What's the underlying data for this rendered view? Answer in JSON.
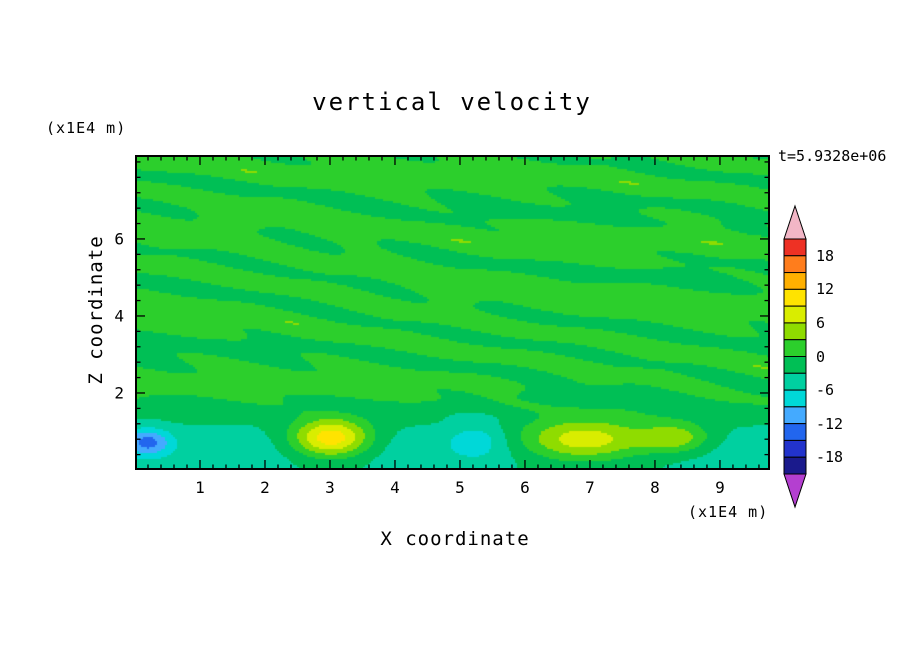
{
  "header": {
    "title": "vertical velocity",
    "timestamp": "t=5.9328e+06"
  },
  "axes": {
    "x": {
      "label": "X coordinate",
      "unit": "(x1E4 m)",
      "min": 0,
      "max": 9.77,
      "major_ticks": [
        1,
        2,
        3,
        4,
        5,
        6,
        7,
        8,
        9
      ],
      "minor_step": 0.2
    },
    "z": {
      "label": "Z coordinate",
      "unit": "(x1E4 m)",
      "min": 0,
      "max": 8.18,
      "major_ticks": [
        2,
        4,
        6
      ],
      "minor_step": 0.4
    }
  },
  "colorbar": {
    "tick_labels": [
      "18",
      "12",
      "6",
      "0",
      "-6",
      "-12",
      "-18"
    ],
    "cell_colors_top_to_bottom": [
      "#ee3124",
      "#ff7d1c",
      "#ffb000",
      "#ffe300",
      "#d9ed00",
      "#8fdc00",
      "#2ccf2c",
      "#00bf55",
      "#00d0a0",
      "#00d8d8",
      "#44aaff",
      "#2266ee",
      "#2233cc",
      "#1a1a8c"
    ],
    "over_color": "#f2b6c6",
    "under_color": "#b43fd0"
  },
  "chart_data": {
    "type": "heatmap",
    "subtype": "filled-contour",
    "title": "vertical velocity",
    "xlabel": "X coordinate",
    "ylabel": "Z coordinate",
    "x_unit": "(x1E4 m)",
    "z_unit": "(x1E4 m)",
    "time_annotation": "t=5.9328e+06",
    "x_range": [
      0,
      9.77
    ],
    "z_range": [
      0,
      8.18
    ],
    "contour_interval": 3,
    "levels": [
      -21,
      -18,
      -15,
      -12,
      -9,
      -6,
      -3,
      0,
      3,
      6,
      9,
      12,
      15,
      18,
      21
    ],
    "colorbar_tick_values": [
      18,
      12,
      6,
      0,
      -6,
      -12,
      -18
    ],
    "description": "Near-zero green field filled with thin, horizontally-elongated wave streaks (values oscillating between -3 and +3) above ~z=1.5; a shallow negative teal/cyan layer (about -4 to -6) hugs the bottom boundary with localized extrema embedded in it",
    "background_oscillation": {
      "amplitude": 2.6,
      "mean": 0.5,
      "streak_orientation": "horizontal",
      "active_above_z": 1.0
    },
    "bottom_band": {
      "amplitude": -4.6,
      "z_center": 0.55,
      "z_width": 1.0
    },
    "features": [
      {
        "name": "yellow-updraft-maximum",
        "x": 3.0,
        "z": 0.85,
        "rx": 0.6,
        "rz": 0.5,
        "amplitude": 15,
        "peak_value": 10.5
      },
      {
        "name": "blue-downdraft-minimum",
        "x": 0.18,
        "z": 0.75,
        "rx": 0.35,
        "rz": 0.35,
        "amplitude": -9,
        "peak_value": -13.5
      },
      {
        "name": "cyan-downdraft-patch",
        "x": 5.25,
        "z": 0.8,
        "rx": 0.45,
        "rz": 0.5,
        "amplitude": -4,
        "peak_value": -8.5
      },
      {
        "name": "broad-updraft-region",
        "x": 6.9,
        "z": 0.8,
        "rx": 1.0,
        "rz": 0.55,
        "amplitude": 12,
        "peak_value": 7.5
      },
      {
        "name": "updraft-region-east",
        "x": 8.3,
        "z": 0.85,
        "rx": 0.55,
        "rz": 0.4,
        "amplitude": 8,
        "peak_value": 3.7
      },
      {
        "name": "teal-speckle-line",
        "x": 7.0,
        "z": 1.9,
        "rx": 1.6,
        "rz": 0.25,
        "amplitude": -1.4,
        "peak_value": -3.5
      }
    ]
  }
}
